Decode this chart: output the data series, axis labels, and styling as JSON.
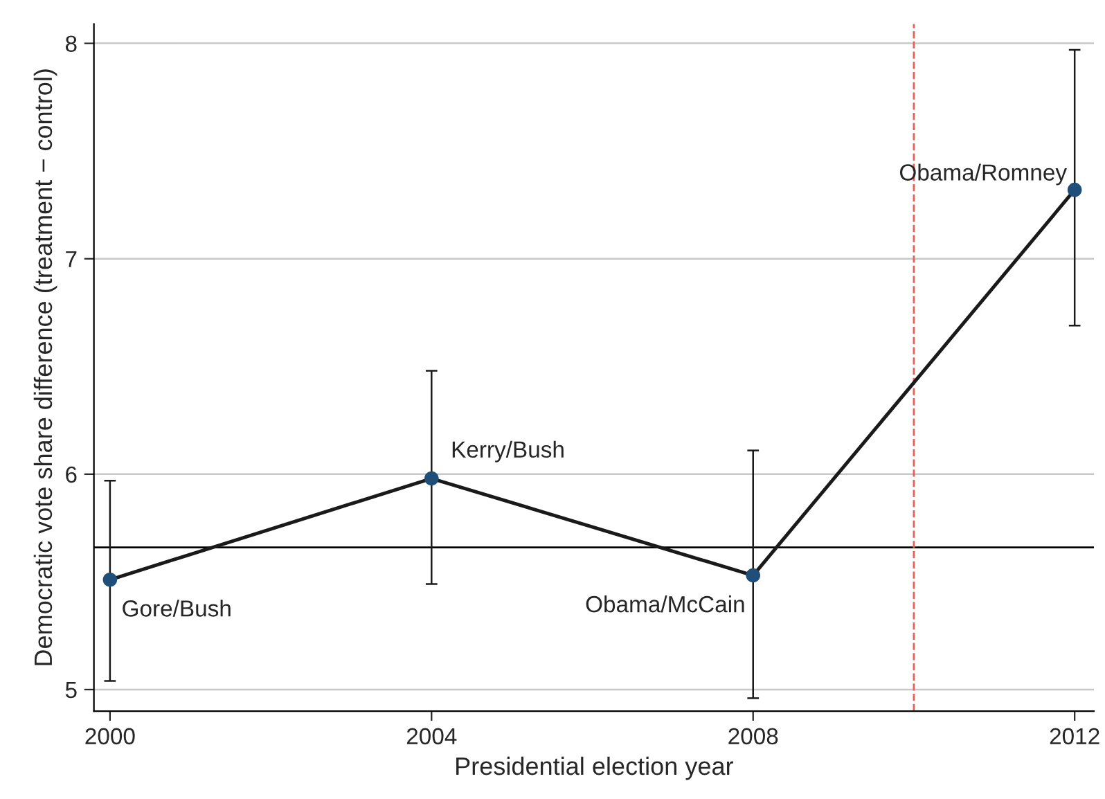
{
  "chart_data": {
    "type": "line",
    "xlabel": "Presidential election year",
    "ylabel": "Democratic vote share difference (treatment − control)",
    "x": [
      2000,
      2004,
      2008,
      2012
    ],
    "series": [
      {
        "color": "#1a1a1a",
        "values": [
          5.51,
          5.98,
          5.53,
          7.32
        ],
        "errors": [
          [
            5.04,
            5.97
          ],
          [
            5.49,
            6.48
          ],
          [
            4.96,
            6.11
          ],
          [
            6.69,
            7.97
          ]
        ]
      }
    ],
    "marker": "circle",
    "line_style": "solid",
    "grid": "y",
    "xlim": [
      1999.8,
      2012.24
    ],
    "ylim": [
      4.9,
      8.09
    ],
    "xticks": [
      2000,
      2004,
      2008,
      2012
    ],
    "yticks": [
      5,
      6,
      7,
      8
    ],
    "ref_lines": [
      {
        "axis": "y",
        "value": 5.66,
        "color": "#000000",
        "line_style": "solid"
      },
      {
        "axis": "x",
        "value": 2010,
        "color": "#e8605a",
        "line_style": "dashed"
      }
    ],
    "annotations": [
      {
        "text": "Gore/Bush",
        "x": 2000,
        "y": 5.51
      },
      {
        "text": "Kerry/Bush",
        "x": 2004,
        "y": 5.98
      },
      {
        "text": "Obama/McCain",
        "x": 2008,
        "y": 5.53
      },
      {
        "text": "Obama/Romney",
        "x": 2012,
        "y": 7.32
      }
    ]
  }
}
